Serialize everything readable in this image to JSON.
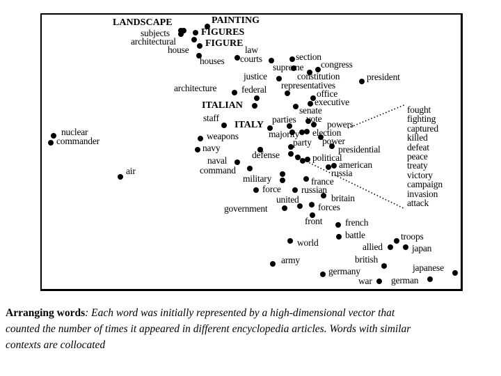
{
  "figure": {
    "words": [
      "LANDSCAPE",
      "PAINTING",
      "subjects",
      "FIGURES",
      "architectural",
      "FIGURE",
      "house",
      "houses",
      "law",
      "courts",
      "supreme",
      "section",
      "congress",
      "constitution",
      "justice",
      "president",
      "architecture",
      "federal",
      "representatives",
      "office",
      "executive",
      "ITALIAN",
      "senate",
      "vote",
      "parties",
      "powers",
      "staff",
      "ITALY",
      "election",
      "majority",
      "power",
      "nuclear",
      "commander",
      "weapons",
      "party",
      "presidential",
      "navy",
      "defense",
      "political",
      "naval",
      "american",
      "command",
      "air",
      "russia",
      "military",
      "france",
      "force",
      "russian",
      "britain",
      "united",
      "forces",
      "government",
      "front",
      "french",
      "battle",
      "world",
      "troops",
      "allied",
      "japan",
      "army",
      "british",
      "japanese",
      "germany",
      "war",
      "german"
    ],
    "inset_words": [
      "fought",
      "fighting",
      "captured",
      "killed",
      "defeat",
      "peace",
      "treaty",
      "victory",
      "campaign",
      "invasion",
      "attack"
    ]
  },
  "caption": {
    "lead": "Arranging words",
    "lines": [
      ":  Each word was initially represented by a high-dimensional vector that",
      "counted the number of times it appeared in different encyclopedia articles.  Words with similar",
      "contexts are collocated"
    ]
  }
}
